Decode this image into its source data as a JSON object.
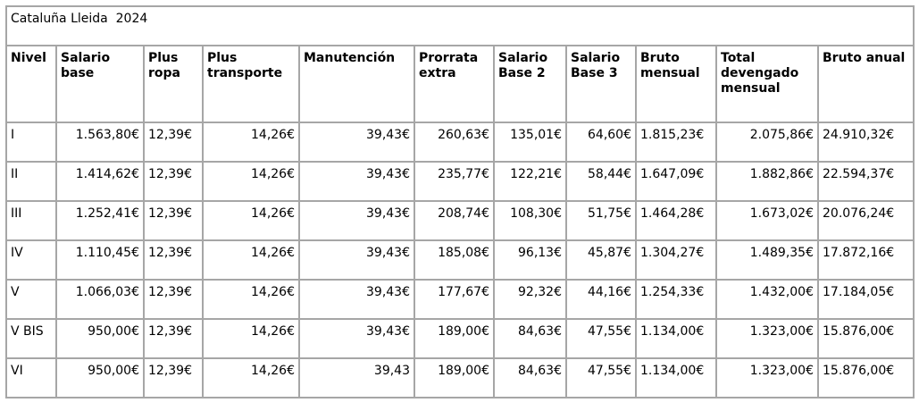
{
  "table": {
    "title": "Cataluña Lleida  2024",
    "columns": [
      "Nivel",
      "Salario base",
      "Plus ropa",
      "Plus transporte",
      "Manutención",
      "Prorrata extra",
      "Salario Base 2",
      "Salario Base 3",
      "Bruto mensual",
      "Total devengado mensual",
      "Bruto anual"
    ],
    "rows": [
      [
        "I",
        "1.563,80€",
        "12,39€",
        "14,26€",
        "39,43€",
        "260,63€",
        "135,01€",
        "64,60€",
        "1.815,23€",
        "2.075,86€",
        "24.910,32€"
      ],
      [
        "II",
        "1.414,62€",
        "12,39€",
        "14,26€",
        "39,43€",
        "235,77€",
        "122,21€",
        "58,44€",
        "1.647,09€",
        "1.882,86€",
        "22.594,37€"
      ],
      [
        "III",
        "1.252,41€",
        "12,39€",
        "14,26€",
        "39,43€",
        "208,74€",
        "108,30€",
        "51,75€",
        "1.464,28€",
        "1.673,02€",
        "20.076,24€"
      ],
      [
        "IV",
        "1.110,45€",
        "12,39€",
        "14,26€",
        "39,43€",
        "185,08€",
        "96,13€",
        "45,87€",
        "1.304,27€",
        "1.489,35€",
        "17.872,16€"
      ],
      [
        "V",
        "1.066,03€",
        "12,39€",
        "14,26€",
        "39,43€",
        "177,67€",
        "92,32€",
        "44,16€",
        "1.254,33€",
        "1.432,00€",
        "17.184,05€"
      ],
      [
        "V BIS",
        "950,00€",
        "12,39€",
        "14,26€",
        "39,43€",
        "189,00€",
        "84,63€",
        "47,55€",
        "1.134,00€",
        "1.323,00€",
        "15.876,00€"
      ],
      [
        "VI",
        "950,00€",
        "12,39€",
        "14,26€",
        "39,43",
        "189,00€",
        "84,63€",
        "47,55€",
        "1.134,00€",
        "1.323,00€",
        "15.876,00€"
      ]
    ],
    "border_color": "#a6a6a6",
    "text_color": "#000000",
    "background_color": "#ffffff"
  }
}
